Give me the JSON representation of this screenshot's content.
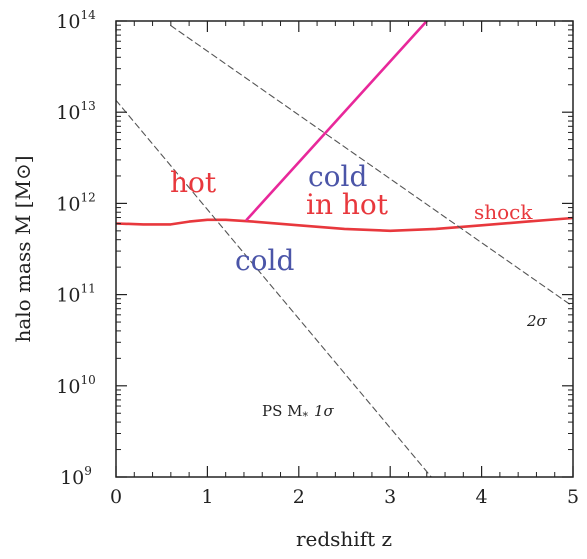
{
  "chart_data": {
    "type": "line",
    "xlabel": "redshift z",
    "ylabel": "halo mass M [M⊙]",
    "xlim": [
      0,
      5
    ],
    "ylim": [
      9,
      14
    ],
    "y_scale": "log10",
    "x_ticks": [
      "0",
      "1",
      "2",
      "3",
      "4",
      "5"
    ],
    "y_ticks": [
      {
        "base": "10",
        "exp": "9",
        "value": 9
      },
      {
        "base": "10",
        "exp": "10",
        "value": 10
      },
      {
        "base": "10",
        "exp": "11",
        "value": 11
      },
      {
        "base": "10",
        "exp": "12",
        "value": 12
      },
      {
        "base": "10",
        "exp": "13",
        "value": 13
      },
      {
        "base": "10",
        "exp": "14",
        "value": 14
      }
    ],
    "series": [
      {
        "key": "shock",
        "label": "shock",
        "color": "#e8383d",
        "style": "solid",
        "x": [
          0,
          0.3,
          0.6,
          0.8,
          1.0,
          1.2,
          1.5,
          2.0,
          2.5,
          3.0,
          3.5,
          4.0,
          4.5,
          5.0
        ],
        "y": [
          11.78,
          11.77,
          11.77,
          11.8,
          11.82,
          11.82,
          11.8,
          11.76,
          11.72,
          11.7,
          11.72,
          11.76,
          11.8,
          11.84
        ]
      },
      {
        "key": "cold-in-hot",
        "color": "#e8289a",
        "style": "solid",
        "x": [
          1.43,
          3.4
        ],
        "y": [
          11.82,
          14.0
        ]
      },
      {
        "key": "ps-1sigma",
        "label": "PS M* 1σ",
        "color": "#555555",
        "style": "dashed",
        "x": [
          0,
          3.45
        ],
        "y": [
          13.13,
          9.0
        ]
      },
      {
        "key": "ps-2sigma",
        "label": "2σ",
        "color": "#555555",
        "style": "dashed",
        "x": [
          0.6,
          5.0
        ],
        "y": [
          13.95,
          10.87
        ]
      }
    ],
    "regions": [
      {
        "key": "hot",
        "text": "hot",
        "color": "#e8383d"
      },
      {
        "key": "cold",
        "text": "cold",
        "color": "#4b55a8"
      },
      {
        "key": "cold-word",
        "text": "cold",
        "color": "#4b55a8"
      },
      {
        "key": "in-hot",
        "text": "in hot",
        "color": "#e8383d"
      }
    ],
    "annotations": {
      "ps_label": "PS M",
      "ps_sub": "*",
      "ps_sigma": "1σ",
      "two_sigma": "2σ",
      "shock": "shock"
    },
    "grid": false,
    "legend": "none"
  }
}
